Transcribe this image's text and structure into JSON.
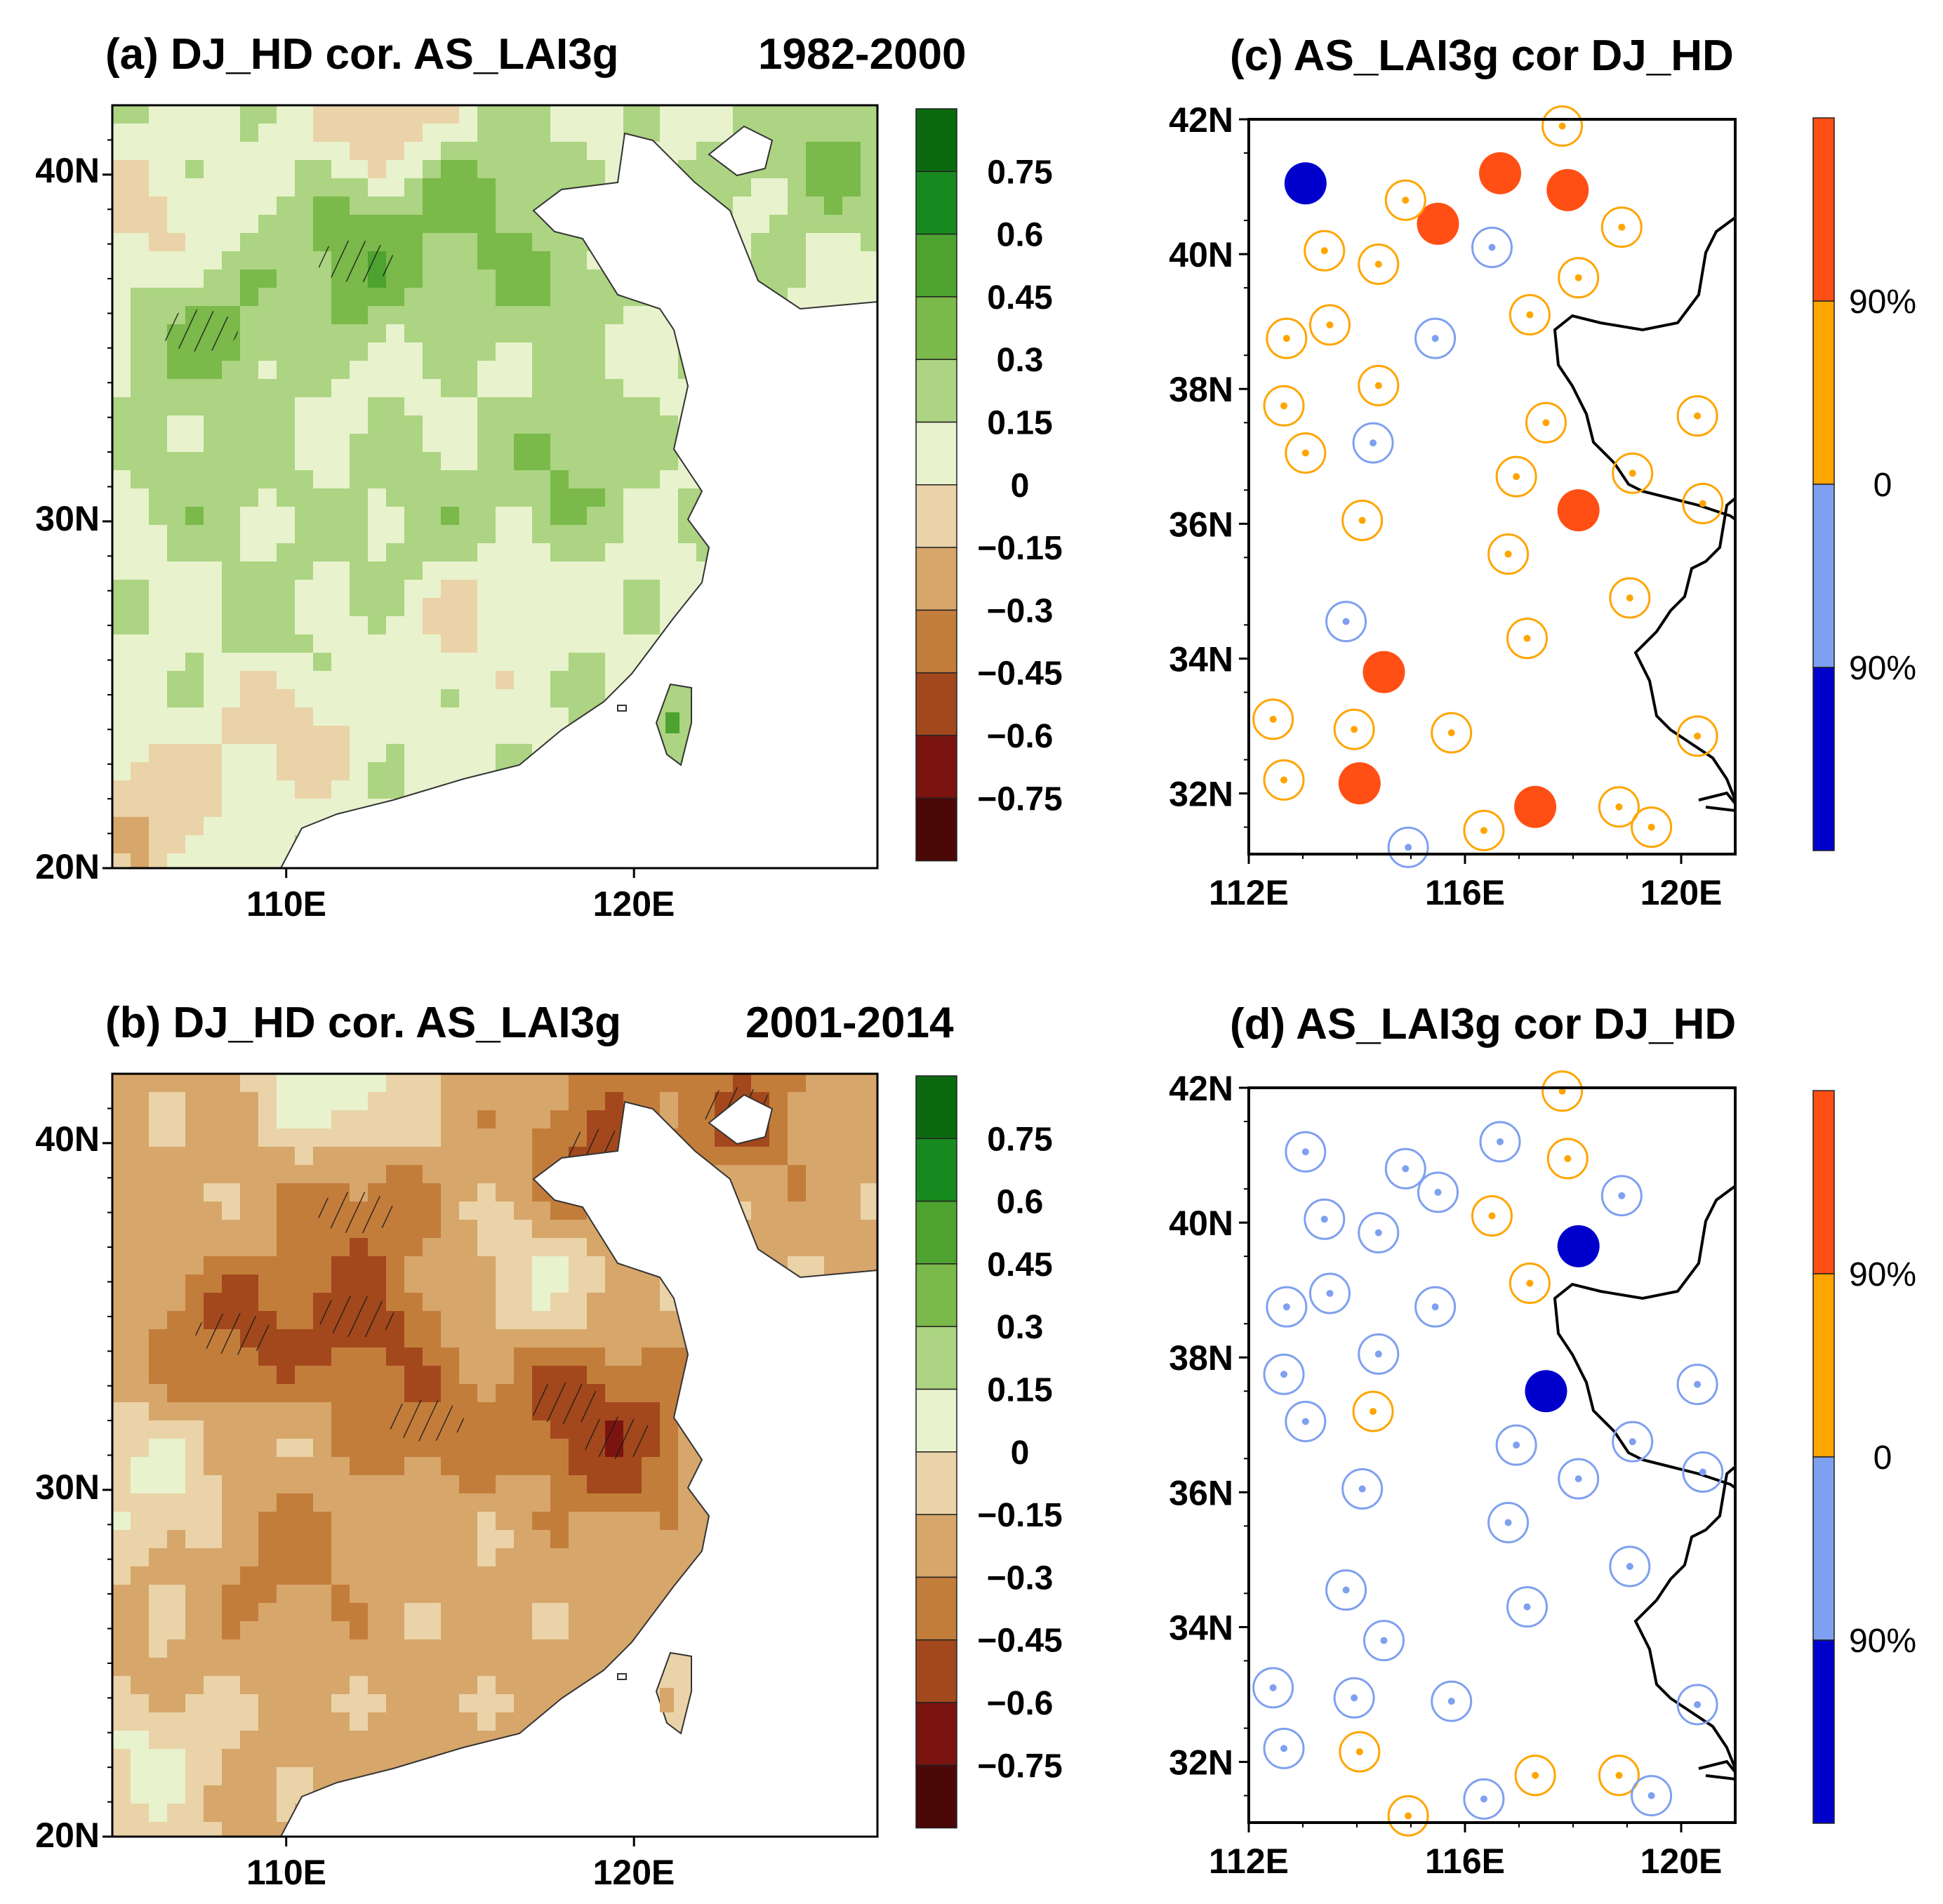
{
  "panels": {
    "a": {
      "title": "(a) DJ_HD cor. AS_LAI3g",
      "period": "1982-2000",
      "lat_ticks": [
        "20N",
        "30N",
        "40N"
      ],
      "lon_ticks": [
        "110E",
        "120E"
      ]
    },
    "b": {
      "title": "(b) DJ_HD cor. AS_LAI3g",
      "period": "2001-2014",
      "lat_ticks": [
        "20N",
        "30N",
        "40N"
      ],
      "lon_ticks": [
        "110E",
        "120E"
      ]
    },
    "c": {
      "title": "(c) AS_LAI3g cor DJ_HD",
      "lat_ticks": [
        "32N",
        "34N",
        "36N",
        "38N",
        "40N",
        "42N"
      ],
      "lon_ticks": [
        "112E",
        "116E",
        "120E"
      ]
    },
    "d": {
      "title": "(d) AS_LAI3g cor DJ_HD",
      "lat_ticks": [
        "32N",
        "34N",
        "36N",
        "38N",
        "40N",
        "42N"
      ],
      "lon_ticks": [
        "112E",
        "116E",
        "120E"
      ]
    }
  },
  "colorbar_fields": {
    "labels": [
      "0.75",
      "0.6",
      "0.45",
      "0.3",
      "0.15",
      "0",
      "−0.15",
      "−0.3",
      "−0.45",
      "−0.6",
      "−0.75"
    ],
    "colors": [
      "#0b6a10",
      "#178a1f",
      "#4ea230",
      "#7ab94a",
      "#acd482",
      "#e8f2cd",
      "#ead3a8",
      "#d7a66a",
      "#c37d3b",
      "#a3481c",
      "#7b1410",
      "#4c0707"
    ]
  },
  "colorbar_stations": {
    "labels": [
      "90%",
      "0",
      "90%"
    ],
    "colors": [
      "#ff4f14",
      "#ffa500",
      "#7fa0f0",
      "#0000cd"
    ]
  },
  "chart_data": [
    {
      "type": "map-contour",
      "panel": "a",
      "variable": "Correlation DJ_HD vs AS_LAI3g",
      "period": "1982-2000",
      "lon_range": [
        105,
        127
      ],
      "lat_range": [
        20,
        42
      ],
      "levels": [
        -0.75,
        -0.6,
        -0.45,
        -0.3,
        -0.15,
        0,
        0.15,
        0.3,
        0.45,
        0.6,
        0.75
      ],
      "field_centers": [
        {
          "lon": 107.5,
          "lat": 35.5,
          "value": 0.45
        },
        {
          "lon": 112,
          "lat": 37.5,
          "value": 0.5
        },
        {
          "lon": 115,
          "lat": 39.5,
          "value": 0.4
        },
        {
          "lon": 117,
          "lat": 37,
          "value": 0.35
        },
        {
          "lon": 118,
          "lat": 31.5,
          "value": 0.35
        },
        {
          "lon": 114,
          "lat": 30,
          "value": 0.25
        },
        {
          "lon": 110,
          "lat": 27,
          "value": 0.2
        },
        {
          "lon": 108,
          "lat": 31,
          "value": 0.25
        },
        {
          "lon": 125.5,
          "lat": 40.5,
          "value": 0.35
        },
        {
          "lon": 113,
          "lat": 41.8,
          "value": -0.3
        },
        {
          "lon": 106,
          "lat": 38,
          "value": -0.15
        },
        {
          "lon": 106,
          "lat": 21.5,
          "value": -0.3
        },
        {
          "lon": 110,
          "lat": 24,
          "value": -0.2
        },
        {
          "lon": 115,
          "lat": 27,
          "value": -0.1
        }
      ]
    },
    {
      "type": "map-contour",
      "panel": "b",
      "variable": "Correlation DJ_HD vs AS_LAI3g",
      "period": "2001-2014",
      "lon_range": [
        105,
        127
      ],
      "lat_range": [
        20,
        42
      ],
      "levels": [
        -0.75,
        -0.6,
        -0.45,
        -0.3,
        -0.15,
        0,
        0.15,
        0.3,
        0.45,
        0.6,
        0.75
      ],
      "field_centers": [
        {
          "lon": 108.5,
          "lat": 34.5,
          "value": -0.55
        },
        {
          "lon": 112,
          "lat": 35,
          "value": -0.6
        },
        {
          "lon": 114,
          "lat": 32,
          "value": -0.45
        },
        {
          "lon": 118,
          "lat": 32.5,
          "value": -0.5
        },
        {
          "lon": 119.5,
          "lat": 31.5,
          "value": -0.6
        },
        {
          "lon": 119,
          "lat": 39.8,
          "value": -0.55
        },
        {
          "lon": 123,
          "lat": 41,
          "value": -0.5
        },
        {
          "lon": 112,
          "lat": 38,
          "value": -0.45
        },
        {
          "lon": 110,
          "lat": 28,
          "value": -0.35
        },
        {
          "lon": 106,
          "lat": 30,
          "value": 0.15
        },
        {
          "lon": 106,
          "lat": 22,
          "value": 0.2
        },
        {
          "lon": 117.5,
          "lat": 36,
          "value": 0.1
        },
        {
          "lon": 111.5,
          "lat": 41.5,
          "value": 0.3
        }
      ]
    },
    {
      "type": "map-scatter",
      "panel": "c",
      "variable": "Station correlation AS_LAI3g vs DJ_HD",
      "lon_range": [
        112,
        121
      ],
      "lat_range": [
        31.1,
        42
      ],
      "legend": {
        "sig_pos": "positive, 90% significant",
        "pos": "positive (0 to 90%)",
        "neg": "negative (0 to 90%)",
        "sig_neg": "negative, 90% significant"
      },
      "stations": [
        {
          "lon": 113.05,
          "lat": 41.05,
          "cls": "sig_neg"
        },
        {
          "lon": 115.5,
          "lat": 40.45,
          "cls": "sig_pos"
        },
        {
          "lon": 116.65,
          "lat": 41.2,
          "cls": "sig_pos"
        },
        {
          "lon": 117.9,
          "lat": 40.95,
          "cls": "sig_pos"
        },
        {
          "lon": 118.1,
          "lat": 36.2,
          "cls": "sig_pos"
        },
        {
          "lon": 114.5,
          "lat": 33.8,
          "cls": "sig_pos"
        },
        {
          "lon": 114.05,
          "lat": 32.15,
          "cls": "sig_pos"
        },
        {
          "lon": 117.3,
          "lat": 31.8,
          "cls": "sig_pos"
        },
        {
          "lon": 117.8,
          "lat": 41.9,
          "cls": "pos"
        },
        {
          "lon": 114.9,
          "lat": 40.8,
          "cls": "pos"
        },
        {
          "lon": 113.4,
          "lat": 40.05,
          "cls": "pos"
        },
        {
          "lon": 114.4,
          "lat": 39.85,
          "cls": "pos"
        },
        {
          "lon": 118.9,
          "lat": 40.4,
          "cls": "pos"
        },
        {
          "lon": 118.1,
          "lat": 39.65,
          "cls": "pos"
        },
        {
          "lon": 117.2,
          "lat": 39.1,
          "cls": "pos"
        },
        {
          "lon": 112.7,
          "lat": 38.75,
          "cls": "pos"
        },
        {
          "lon": 113.5,
          "lat": 38.95,
          "cls": "pos"
        },
        {
          "lon": 114.4,
          "lat": 38.05,
          "cls": "pos"
        },
        {
          "lon": 112.65,
          "lat": 37.75,
          "cls": "pos"
        },
        {
          "lon": 113.05,
          "lat": 37.05,
          "cls": "pos"
        },
        {
          "lon": 117.5,
          "lat": 37.5,
          "cls": "pos"
        },
        {
          "lon": 116.95,
          "lat": 36.7,
          "cls": "pos"
        },
        {
          "lon": 119.1,
          "lat": 36.75,
          "cls": "pos"
        },
        {
          "lon": 120.3,
          "lat": 37.6,
          "cls": "pos"
        },
        {
          "lon": 120.4,
          "lat": 36.3,
          "cls": "pos"
        },
        {
          "lon": 114.1,
          "lat": 36.05,
          "cls": "pos"
        },
        {
          "lon": 116.8,
          "lat": 35.55,
          "cls": "pos"
        },
        {
          "lon": 119.05,
          "lat": 34.9,
          "cls": "pos"
        },
        {
          "lon": 117.15,
          "lat": 34.3,
          "cls": "pos"
        },
        {
          "lon": 112.45,
          "lat": 33.1,
          "cls": "pos"
        },
        {
          "lon": 113.95,
          "lat": 32.95,
          "cls": "pos"
        },
        {
          "lon": 115.75,
          "lat": 32.9,
          "cls": "pos"
        },
        {
          "lon": 120.3,
          "lat": 32.85,
          "cls": "pos"
        },
        {
          "lon": 112.65,
          "lat": 32.2,
          "cls": "pos"
        },
        {
          "lon": 118.85,
          "lat": 31.8,
          "cls": "pos"
        },
        {
          "lon": 119.45,
          "lat": 31.5,
          "cls": "pos"
        },
        {
          "lon": 116.35,
          "lat": 31.45,
          "cls": "pos"
        },
        {
          "lon": 116.5,
          "lat": 40.1,
          "cls": "neg"
        },
        {
          "lon": 115.45,
          "lat": 38.75,
          "cls": "neg"
        },
        {
          "lon": 114.3,
          "lat": 37.2,
          "cls": "neg"
        },
        {
          "lon": 113.8,
          "lat": 34.55,
          "cls": "neg"
        },
        {
          "lon": 114.95,
          "lat": 31.2,
          "cls": "neg"
        }
      ]
    },
    {
      "type": "map-scatter",
      "panel": "d",
      "variable": "Station correlation AS_LAI3g vs DJ_HD",
      "lon_range": [
        112,
        121
      ],
      "lat_range": [
        31.1,
        42
      ],
      "legend": {
        "sig_pos": "positive, 90% significant",
        "pos": "positive (0 to 90%)",
        "neg": "negative (0 to 90%)",
        "sig_neg": "negative, 90% significant"
      },
      "stations": [
        {
          "lon": 118.1,
          "lat": 39.65,
          "cls": "sig_neg"
        },
        {
          "lon": 117.5,
          "lat": 37.5,
          "cls": "sig_neg"
        },
        {
          "lon": 117.8,
          "lat": 41.95,
          "cls": "pos"
        },
        {
          "lon": 117.9,
          "lat": 40.95,
          "cls": "pos"
        },
        {
          "lon": 116.5,
          "lat": 40.1,
          "cls": "pos"
        },
        {
          "lon": 117.2,
          "lat": 39.1,
          "cls": "pos"
        },
        {
          "lon": 114.3,
          "lat": 37.2,
          "cls": "pos"
        },
        {
          "lon": 114.05,
          "lat": 32.15,
          "cls": "pos"
        },
        {
          "lon": 117.3,
          "lat": 31.8,
          "cls": "pos"
        },
        {
          "lon": 118.85,
          "lat": 31.8,
          "cls": "pos"
        },
        {
          "lon": 114.95,
          "lat": 31.2,
          "cls": "pos"
        },
        {
          "lon": 113.05,
          "lat": 41.05,
          "cls": "neg"
        },
        {
          "lon": 114.9,
          "lat": 40.8,
          "cls": "neg"
        },
        {
          "lon": 116.65,
          "lat": 41.2,
          "cls": "neg"
        },
        {
          "lon": 115.5,
          "lat": 40.45,
          "cls": "neg"
        },
        {
          "lon": 113.4,
          "lat": 40.05,
          "cls": "neg"
        },
        {
          "lon": 114.4,
          "lat": 39.85,
          "cls": "neg"
        },
        {
          "lon": 118.9,
          "lat": 40.4,
          "cls": "neg"
        },
        {
          "lon": 112.7,
          "lat": 38.75,
          "cls": "neg"
        },
        {
          "lon": 113.5,
          "lat": 38.95,
          "cls": "neg"
        },
        {
          "lon": 115.45,
          "lat": 38.75,
          "cls": "neg"
        },
        {
          "lon": 114.4,
          "lat": 38.05,
          "cls": "neg"
        },
        {
          "lon": 112.65,
          "lat": 37.75,
          "cls": "neg"
        },
        {
          "lon": 113.05,
          "lat": 37.05,
          "cls": "neg"
        },
        {
          "lon": 120.3,
          "lat": 37.6,
          "cls": "neg"
        },
        {
          "lon": 116.95,
          "lat": 36.7,
          "cls": "neg"
        },
        {
          "lon": 119.1,
          "lat": 36.75,
          "cls": "neg"
        },
        {
          "lon": 118.1,
          "lat": 36.2,
          "cls": "neg"
        },
        {
          "lon": 120.4,
          "lat": 36.3,
          "cls": "neg"
        },
        {
          "lon": 114.1,
          "lat": 36.05,
          "cls": "neg"
        },
        {
          "lon": 116.8,
          "lat": 35.55,
          "cls": "neg"
        },
        {
          "lon": 119.05,
          "lat": 34.9,
          "cls": "neg"
        },
        {
          "lon": 113.8,
          "lat": 34.55,
          "cls": "neg"
        },
        {
          "lon": 117.15,
          "lat": 34.3,
          "cls": "neg"
        },
        {
          "lon": 114.5,
          "lat": 33.8,
          "cls": "neg"
        },
        {
          "lon": 112.45,
          "lat": 33.1,
          "cls": "neg"
        },
        {
          "lon": 113.95,
          "lat": 32.95,
          "cls": "neg"
        },
        {
          "lon": 115.75,
          "lat": 32.9,
          "cls": "neg"
        },
        {
          "lon": 120.3,
          "lat": 32.85,
          "cls": "neg"
        },
        {
          "lon": 112.65,
          "lat": 32.2,
          "cls": "neg"
        },
        {
          "lon": 116.35,
          "lat": 31.45,
          "cls": "neg"
        },
        {
          "lon": 119.45,
          "lat": 31.5,
          "cls": "neg"
        }
      ]
    }
  ]
}
